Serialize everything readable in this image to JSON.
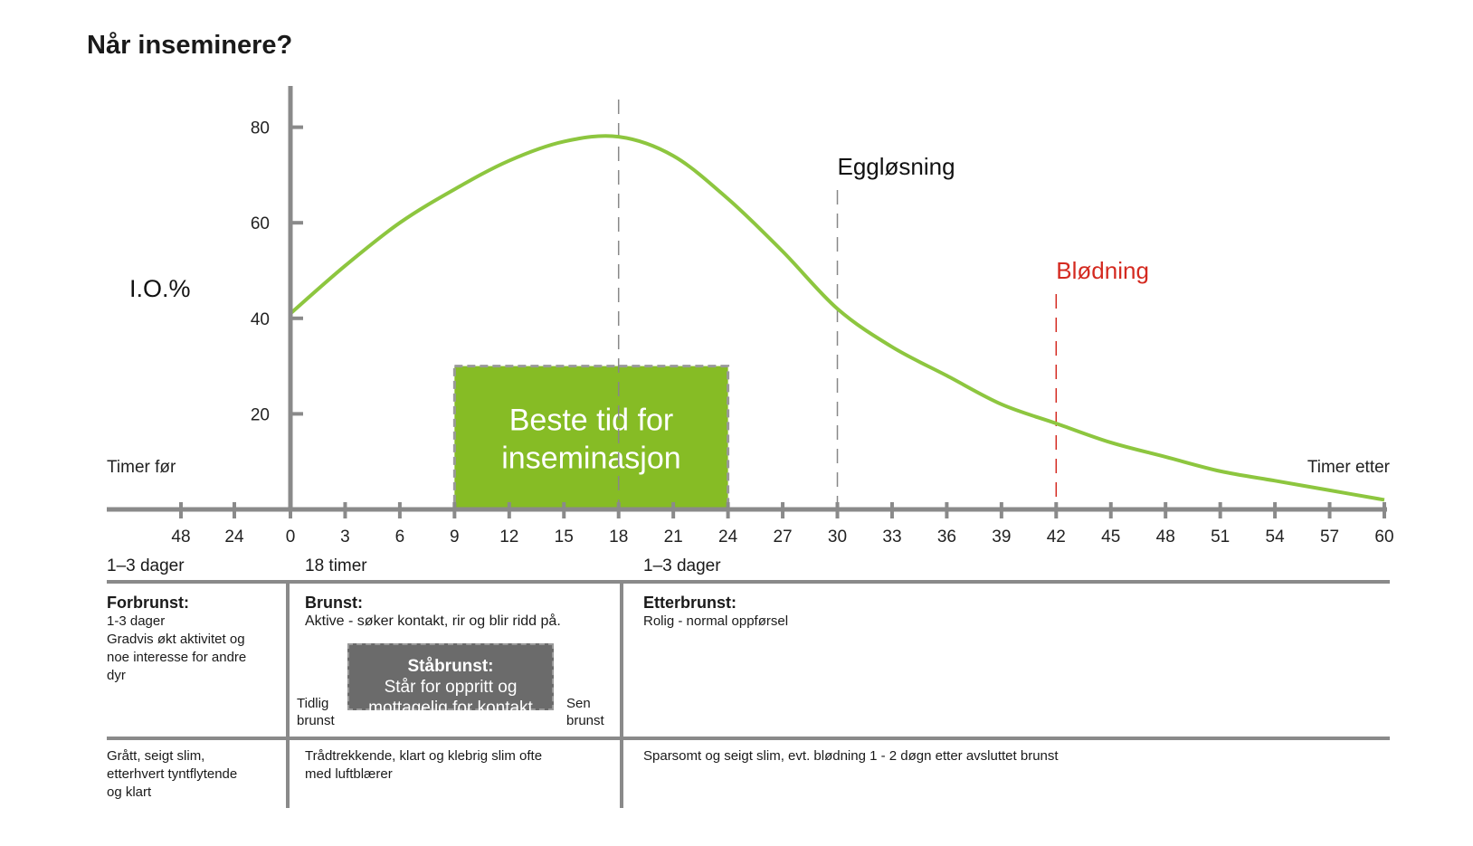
{
  "title": "Når inseminere?",
  "chart_data": {
    "type": "line",
    "ylabel": "I.O.%",
    "yticks": [
      20,
      40,
      60,
      80
    ],
    "xlabel_left": "Timer før",
    "xlabel_right": "Timer etter",
    "x_before_ticks": [
      "48",
      "24"
    ],
    "x_ticks": [
      0,
      3,
      6,
      9,
      12,
      15,
      18,
      21,
      24,
      27,
      30,
      33,
      36,
      39,
      42,
      45,
      48,
      51,
      54,
      57,
      60
    ],
    "series": [
      {
        "color": "#8dc63f",
        "x": [
          0,
          3,
          6,
          9,
          12,
          15,
          18,
          21,
          24,
          27,
          30,
          33,
          36,
          39,
          42,
          45,
          48,
          51,
          54,
          57,
          60
        ],
        "y": [
          41,
          51,
          60,
          67,
          73,
          77,
          78,
          74,
          65,
          54,
          42,
          34,
          28,
          22,
          18,
          14,
          11,
          8,
          6,
          4,
          2
        ]
      }
    ],
    "markers": [
      {
        "x": 18,
        "label": "",
        "color": "#888888"
      },
      {
        "x": 30,
        "label": "Eggløsning",
        "color": "#888888"
      },
      {
        "x": 42,
        "label": "Blødning",
        "color": "#d42a20"
      }
    ],
    "best_window": {
      "x_start": 9,
      "x_end": 24,
      "y_top": 30,
      "label_line1": "Beste tid for",
      "label_line2": "inseminasjon",
      "color": "#86bc25"
    }
  },
  "table": {
    "headers": [
      "1–3 dager",
      "18 timer",
      "1–3 dager"
    ],
    "phases": [
      {
        "title": "Forbrunst:",
        "lines": [
          "1-3 dager",
          "Gradvis økt aktivitet og",
          "noe interesse for andre",
          "dyr"
        ]
      },
      {
        "title": "Brunst:",
        "lines": [
          "Aktive - søker kontakt, rir og blir ridd på."
        ]
      },
      {
        "title": "Etterbrunst:",
        "lines": [
          "Rolig - normal oppførsel"
        ]
      }
    ],
    "standing_heat": {
      "title": "Ståbrunst:",
      "line1": "Står for oppritt og",
      "line2": "mottagelig for kontakt"
    },
    "early_heat": [
      "Tidlig",
      "brunst"
    ],
    "late_heat": [
      "Sen",
      "brunst"
    ],
    "mucus": [
      [
        "Grått, seigt slim,",
        "etterhvert tyntflytende",
        "og klart"
      ],
      [
        "Trådtrekkende, klart og klebrig slim ofte",
        "med luftblærer"
      ],
      [
        "Sparsomt og seigt slim, evt. blødning 1 - 2 døgn etter avsluttet brunst"
      ]
    ]
  }
}
